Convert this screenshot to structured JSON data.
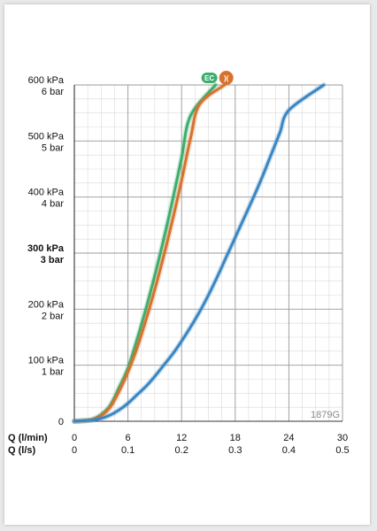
{
  "chart_data": {
    "type": "line",
    "title": "",
    "code_label": "1879G",
    "x_axes": [
      {
        "label": "Q (l/min)",
        "ticks": [
          0,
          6,
          12,
          18,
          24,
          30
        ],
        "tick_labels": [
          "0",
          "6",
          "12",
          "18",
          "24",
          "30"
        ]
      },
      {
        "label": "Q (l/s)",
        "ticks": [
          0,
          0.1,
          0.2,
          0.3,
          0.4,
          0.5
        ],
        "tick_labels": [
          "0",
          "0.1",
          "0.2",
          "0.3",
          "0.4",
          "0.5"
        ]
      }
    ],
    "xlim": [
      0,
      30
    ],
    "ylim": [
      0,
      600
    ],
    "y_ticks": [
      {
        "value": 0,
        "label_kpa": "0",
        "label_bar": "",
        "bold": false
      },
      {
        "value": 100,
        "label_kpa": "100 kPa",
        "label_bar": "1 bar",
        "bold": false
      },
      {
        "value": 200,
        "label_kpa": "200 kPa",
        "label_bar": "2 bar",
        "bold": false
      },
      {
        "value": 300,
        "label_kpa": "300 kPa",
        "label_bar": "3 bar",
        "bold": true
      },
      {
        "value": 400,
        "label_kpa": "400 kPa",
        "label_bar": "4 bar",
        "bold": false
      },
      {
        "value": 500,
        "label_kpa": "500 kPa",
        "label_bar": "5 bar",
        "bold": false
      },
      {
        "value": 600,
        "label_kpa": "600 kPa",
        "label_bar": "6 bar",
        "bold": false
      }
    ],
    "grid": true,
    "series": [
      {
        "color": "#3cae6c",
        "icon": "eco-badge-icon",
        "badge_text": "EC",
        "points": [
          [
            0,
            0
          ],
          [
            1,
            1
          ],
          [
            2,
            3
          ],
          [
            3,
            12
          ],
          [
            4,
            28
          ],
          [
            5,
            60
          ],
          [
            6,
            95
          ],
          [
            7,
            145
          ],
          [
            8,
            200
          ],
          [
            9,
            260
          ],
          [
            10,
            325
          ],
          [
            11,
            395
          ],
          [
            12,
            470
          ],
          [
            13,
            545
          ],
          [
            15.8,
            600
          ]
        ]
      },
      {
        "color": "#d7722e",
        "icon": "flow-restrictor-icon",
        "badge_text": ")(",
        "points": [
          [
            0,
            0
          ],
          [
            1,
            1
          ],
          [
            2,
            3
          ],
          [
            3,
            10
          ],
          [
            4,
            25
          ],
          [
            5,
            53
          ],
          [
            6,
            88
          ],
          [
            7,
            130
          ],
          [
            8,
            180
          ],
          [
            9,
            235
          ],
          [
            10,
            295
          ],
          [
            11,
            360
          ],
          [
            12,
            430
          ],
          [
            13,
            505
          ],
          [
            14,
            565
          ],
          [
            16.8,
            600
          ]
        ]
      },
      {
        "color": "#3a86c3",
        "points": [
          [
            0,
            0
          ],
          [
            1,
            1
          ],
          [
            2,
            2
          ],
          [
            3,
            5
          ],
          [
            4,
            11
          ],
          [
            5,
            20
          ],
          [
            6,
            32
          ],
          [
            7,
            47
          ],
          [
            8,
            62
          ],
          [
            9,
            80
          ],
          [
            10,
            100
          ],
          [
            11,
            120
          ],
          [
            12,
            143
          ],
          [
            13,
            168
          ],
          [
            14,
            195
          ],
          [
            15,
            225
          ],
          [
            16,
            258
          ],
          [
            17,
            293
          ],
          [
            18,
            328
          ],
          [
            19,
            363
          ],
          [
            20,
            398
          ],
          [
            21,
            435
          ],
          [
            22,
            475
          ],
          [
            23,
            515
          ],
          [
            24,
            555
          ],
          [
            27.9,
            600
          ]
        ]
      }
    ]
  }
}
